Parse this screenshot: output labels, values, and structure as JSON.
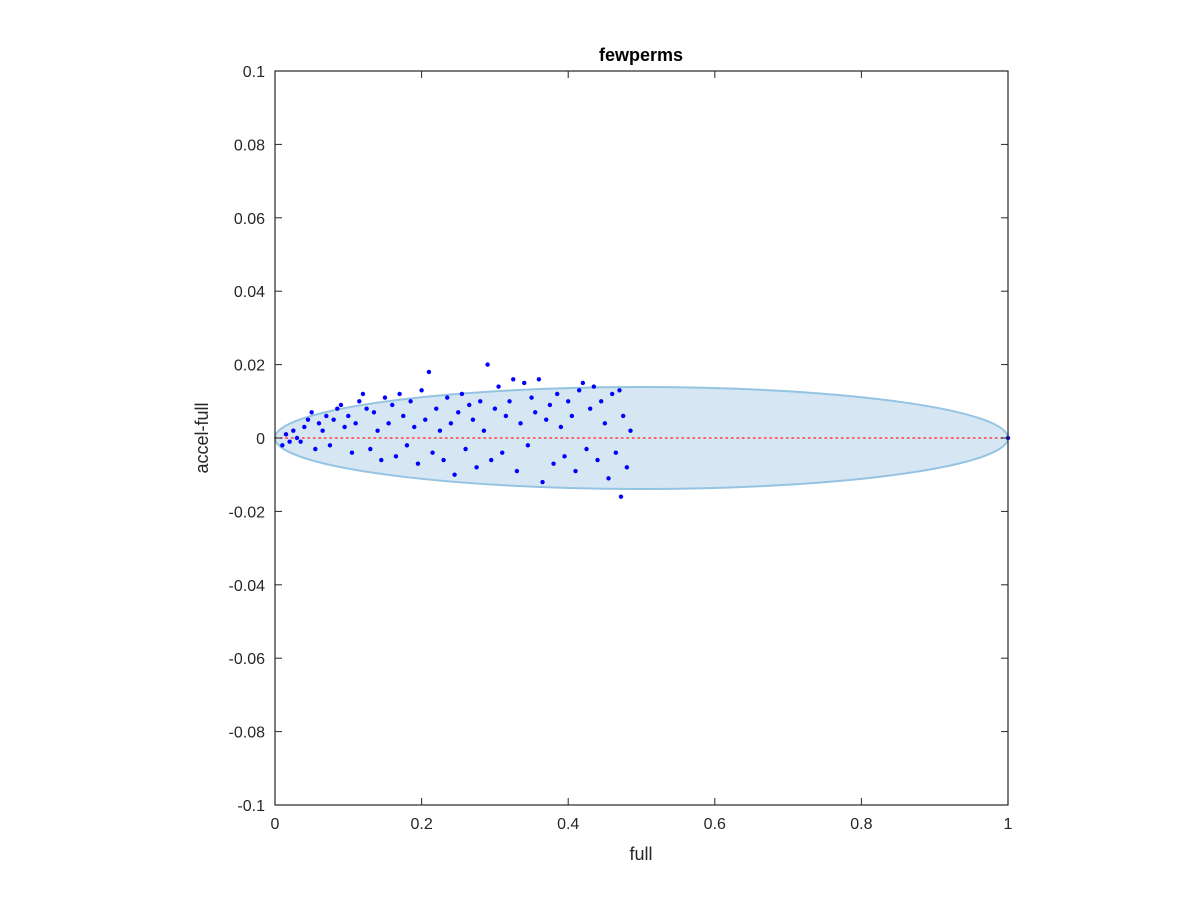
{
  "chart_data": {
    "type": "scatter",
    "title": "fewperms",
    "xlabel": "full",
    "ylabel": "accel-full",
    "xlim": [
      0,
      1
    ],
    "ylim": [
      -0.1,
      0.1
    ],
    "xticks": [
      0,
      0.2,
      0.4,
      0.6,
      0.8,
      1
    ],
    "xtick_labels": [
      "0",
      "0.2",
      "0.4",
      "0.6",
      "0.8",
      "1"
    ],
    "yticks": [
      -0.1,
      -0.08,
      -0.06,
      -0.04,
      -0.02,
      0,
      0.02,
      0.04,
      0.06,
      0.08,
      0.1
    ],
    "ytick_labels": [
      "-0.1",
      "-0.08",
      "-0.06",
      "-0.04",
      "-0.02",
      "0",
      "0.02",
      "0.04",
      "0.06",
      "0.08",
      "0.1"
    ],
    "grid": false,
    "ellipse": {
      "center": [
        0.5,
        0
      ],
      "x_radius": 0.5,
      "y_radius": 0.0139,
      "fill_color": "#d6e6f3",
      "edge_color": "#94c4e2"
    },
    "reference_line": {
      "y": 0,
      "color": "#ff3b3b",
      "style": "dotted"
    },
    "marker_color": "#0000ff",
    "series": [
      {
        "values": [
          [
            0.01,
            -0.002
          ],
          [
            0.015,
            0.001
          ],
          [
            0.02,
            -0.001
          ],
          [
            0.025,
            0.002
          ],
          [
            0.03,
            0.0
          ],
          [
            0.035,
            -0.001
          ],
          [
            0.04,
            0.003
          ],
          [
            0.045,
            0.005
          ],
          [
            0.05,
            0.007
          ],
          [
            0.055,
            -0.003
          ],
          [
            0.06,
            0.004
          ],
          [
            0.065,
            0.002
          ],
          [
            0.07,
            0.006
          ],
          [
            0.075,
            -0.002
          ],
          [
            0.08,
            0.005
          ],
          [
            0.085,
            0.008
          ],
          [
            0.09,
            0.009
          ],
          [
            0.095,
            0.003
          ],
          [
            0.1,
            0.006
          ],
          [
            0.105,
            -0.004
          ],
          [
            0.11,
            0.004
          ],
          [
            0.115,
            0.01
          ],
          [
            0.12,
            0.012
          ],
          [
            0.125,
            0.008
          ],
          [
            0.13,
            -0.003
          ],
          [
            0.135,
            0.007
          ],
          [
            0.14,
            0.002
          ],
          [
            0.145,
            -0.006
          ],
          [
            0.15,
            0.011
          ],
          [
            0.155,
            0.004
          ],
          [
            0.16,
            0.009
          ],
          [
            0.165,
            -0.005
          ],
          [
            0.17,
            0.012
          ],
          [
            0.175,
            0.006
          ],
          [
            0.18,
            -0.002
          ],
          [
            0.185,
            0.01
          ],
          [
            0.19,
            0.003
          ],
          [
            0.195,
            -0.007
          ],
          [
            0.2,
            0.013
          ],
          [
            0.205,
            0.005
          ],
          [
            0.21,
            0.018
          ],
          [
            0.215,
            -0.004
          ],
          [
            0.22,
            0.008
          ],
          [
            0.225,
            0.002
          ],
          [
            0.23,
            -0.006
          ],
          [
            0.235,
            0.011
          ],
          [
            0.24,
            0.004
          ],
          [
            0.245,
            -0.01
          ],
          [
            0.25,
            0.007
          ],
          [
            0.255,
            0.012
          ],
          [
            0.26,
            -0.003
          ],
          [
            0.265,
            0.009
          ],
          [
            0.27,
            0.005
          ],
          [
            0.275,
            -0.008
          ],
          [
            0.28,
            0.01
          ],
          [
            0.285,
            0.002
          ],
          [
            0.29,
            0.02
          ],
          [
            0.295,
            -0.006
          ],
          [
            0.3,
            0.008
          ],
          [
            0.305,
            0.014
          ],
          [
            0.31,
            -0.004
          ],
          [
            0.315,
            0.006
          ],
          [
            0.32,
            0.01
          ],
          [
            0.325,
            0.016
          ],
          [
            0.33,
            -0.009
          ],
          [
            0.335,
            0.004
          ],
          [
            0.34,
            0.015
          ],
          [
            0.345,
            -0.002
          ],
          [
            0.35,
            0.011
          ],
          [
            0.355,
            0.007
          ],
          [
            0.36,
            0.016
          ],
          [
            0.365,
            -0.012
          ],
          [
            0.37,
            0.005
          ],
          [
            0.375,
            0.009
          ],
          [
            0.38,
            -0.007
          ],
          [
            0.385,
            0.012
          ],
          [
            0.39,
            0.003
          ],
          [
            0.395,
            -0.005
          ],
          [
            0.4,
            0.01
          ],
          [
            0.405,
            0.006
          ],
          [
            0.41,
            -0.009
          ],
          [
            0.415,
            0.013
          ],
          [
            0.42,
            0.015
          ],
          [
            0.425,
            -0.003
          ],
          [
            0.43,
            0.008
          ],
          [
            0.435,
            0.014
          ],
          [
            0.44,
            -0.006
          ],
          [
            0.445,
            0.01
          ],
          [
            0.45,
            0.004
          ],
          [
            0.455,
            -0.011
          ],
          [
            0.46,
            0.012
          ],
          [
            0.465,
            -0.004
          ],
          [
            0.47,
            0.013
          ],
          [
            0.472,
            -0.016
          ],
          [
            0.475,
            0.006
          ],
          [
            0.48,
            -0.008
          ],
          [
            0.485,
            0.002
          ],
          [
            1.0,
            0.0
          ]
        ]
      }
    ]
  }
}
